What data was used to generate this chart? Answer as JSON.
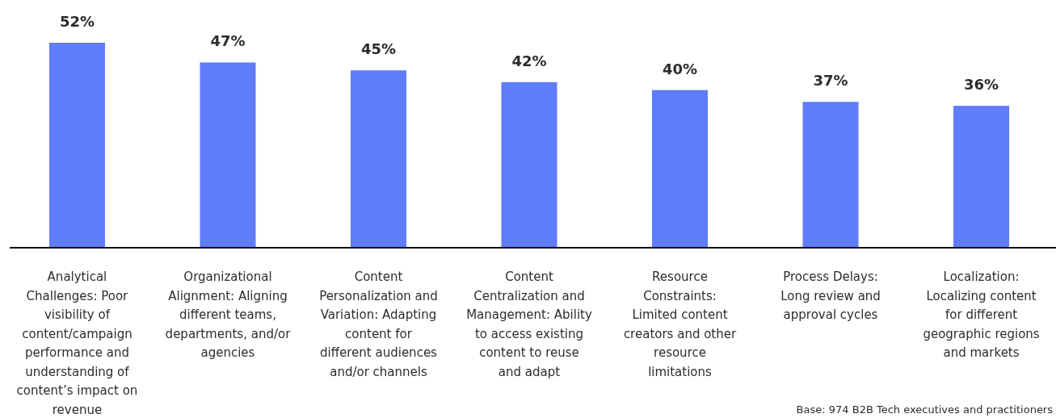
{
  "chart_data": {
    "type": "bar",
    "categories": [
      "Analytical Challenges: Poor visibility of content/campaign performance and understanding of content’s impact on revenue",
      "Organizational Alignment: Aligning different teams, departments, and/or agencies",
      "Content Personalization and Variation: Adapting content for different audiences and/or channels",
      "Content Centralization and Management: Ability to access existing content to reuse and adapt",
      "Resource Constraints: Limited content creators and other resource limitations",
      "Process Delays: Long review and approval cycles",
      "Localization: Localizing content for different geographic regions and markets"
    ],
    "values": [
      52,
      47,
      45,
      42,
      40,
      37,
      36
    ],
    "color": "#5f7cfb",
    "data_labels": true,
    "value_labels": [
      "52%",
      "47%",
      "45%",
      "42%",
      "40%",
      "37%",
      "36%"
    ],
    "annotations": [
      "Base: 974 B2B Tech executives and practitioners"
    ]
  }
}
